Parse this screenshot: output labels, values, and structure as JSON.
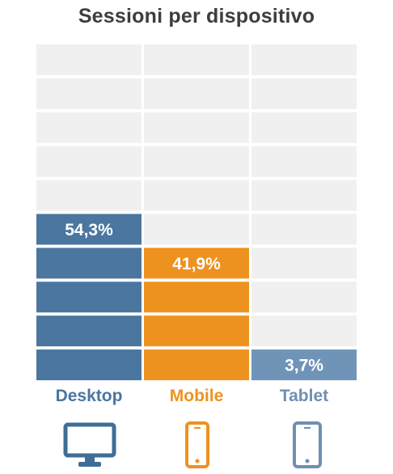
{
  "title": "Sessioni per dispositivo",
  "chart_data": {
    "type": "bar",
    "subtype": "stacked-block",
    "title": "Sessioni per dispositivo",
    "categories": [
      "Desktop",
      "Mobile",
      "Tablet"
    ],
    "values": [
      54.3,
      41.9,
      3.7
    ],
    "value_labels": [
      "54,3%",
      "41,9%",
      "3,7%"
    ],
    "ylim": [
      0,
      100
    ],
    "blocks_per_column": 10,
    "grid": false,
    "colors": [
      "#4a76a0",
      "#ee921f",
      "#7094b8"
    ],
    "empty_color": "#f0f0f0"
  },
  "category_colors": [
    "#4a76a0",
    "#ee921f",
    "#6f8fb1"
  ],
  "icons": [
    "desktop-icon",
    "mobile-icon",
    "tablet-icon"
  ]
}
